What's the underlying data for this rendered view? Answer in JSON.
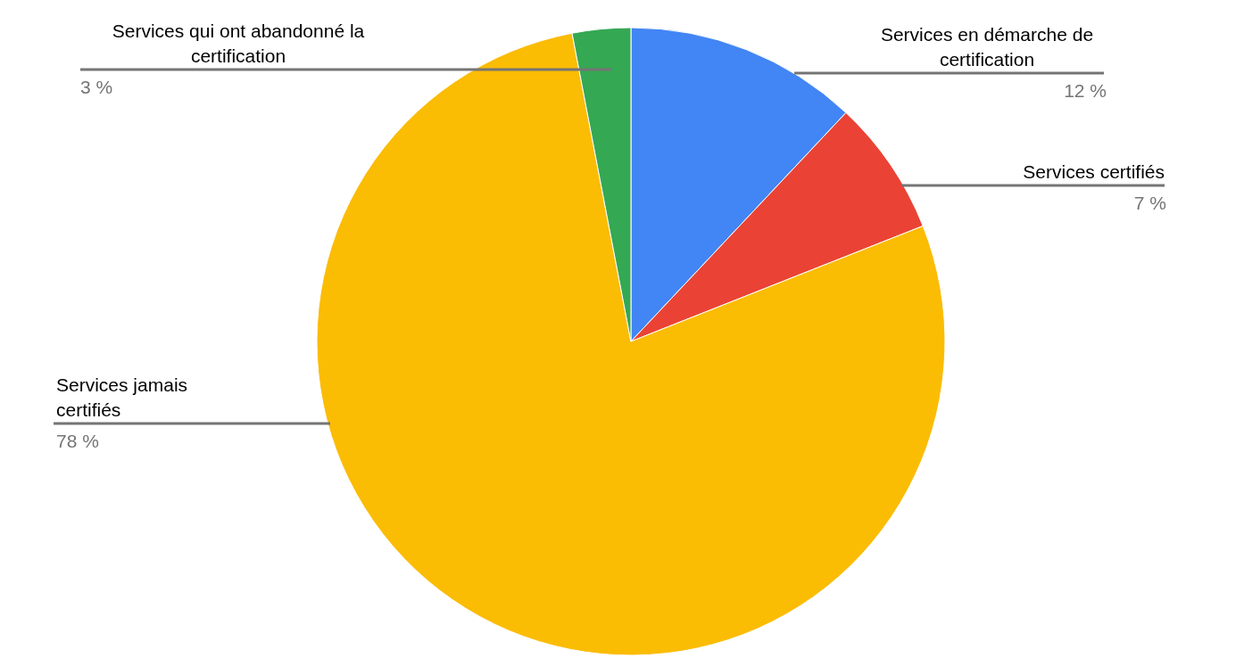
{
  "chart_data": {
    "type": "pie",
    "categories": [
      "Services en démarche de certification",
      "Services certifiés",
      "Services jamais certifiés",
      "Services qui ont abandonné la certification"
    ],
    "values": [
      12,
      7,
      78,
      3
    ],
    "value_labels": [
      "12 %",
      "7 %",
      "78 %",
      "3 %"
    ],
    "colors": [
      "#4285f4",
      "#ea4335",
      "#fbbc04",
      "#34a853"
    ]
  }
}
